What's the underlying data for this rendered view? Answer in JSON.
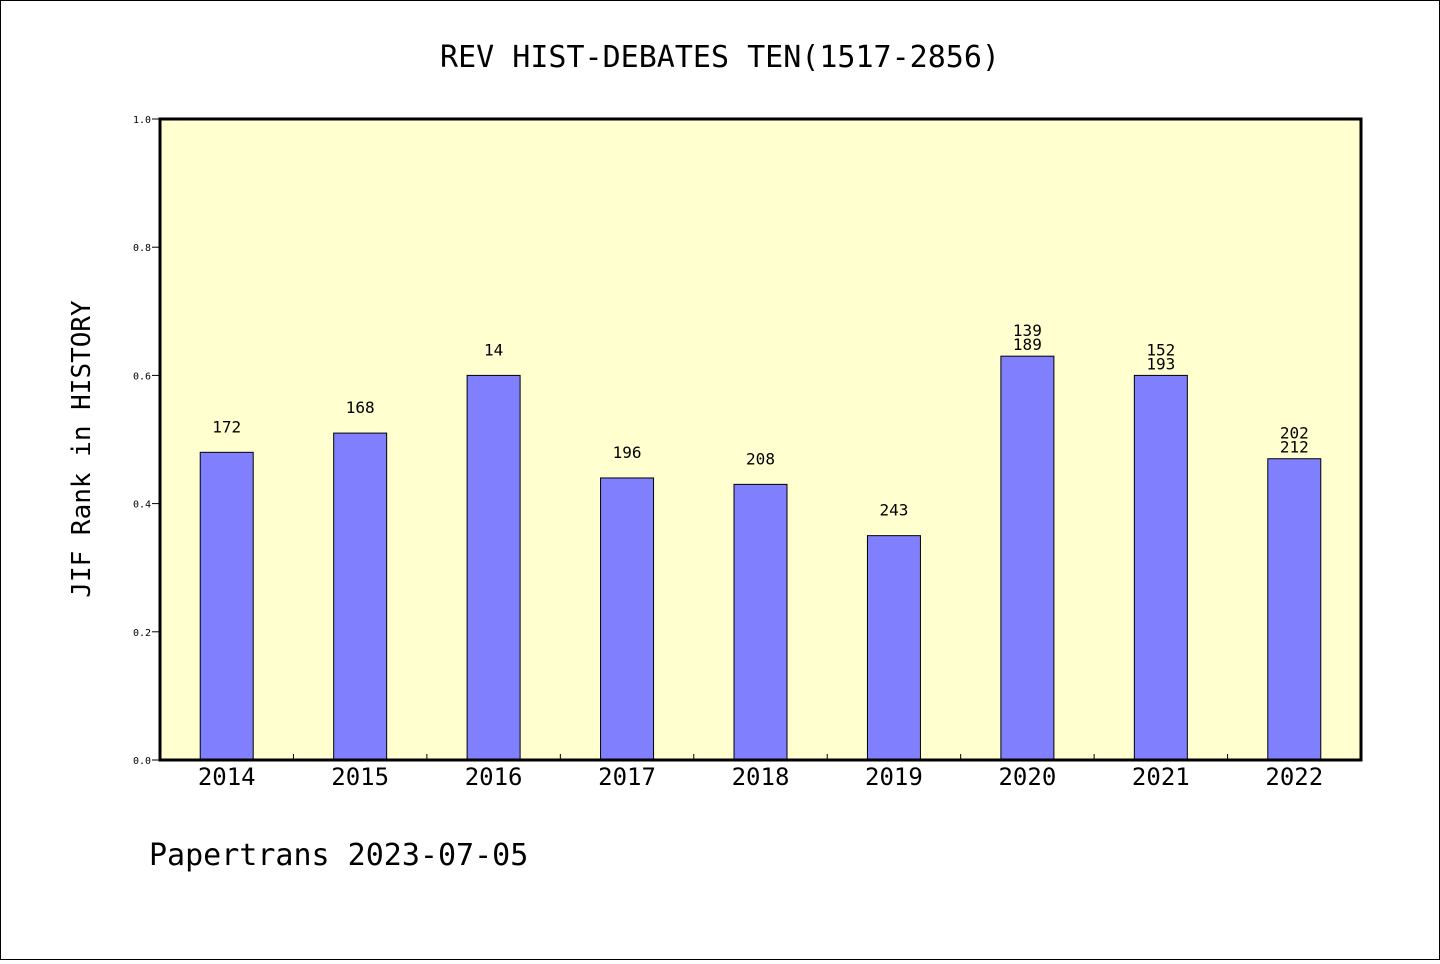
{
  "chart_data": {
    "type": "bar",
    "title": "REV HIST-DEBATES TEN(1517-2856)",
    "ylabel": "JIF Rank in HISTORY",
    "xlabel": "",
    "categories": [
      "2014",
      "2015",
      "2016",
      "2017",
      "2018",
      "2019",
      "2020",
      "2021",
      "2022"
    ],
    "values": [
      0.48,
      0.51,
      0.6,
      0.44,
      0.43,
      0.35,
      0.63,
      0.6,
      0.47
    ],
    "labels": [
      [
        "172"
      ],
      [
        "168"
      ],
      [
        "14"
      ],
      [
        "196"
      ],
      [
        "208"
      ],
      [
        "243"
      ],
      [
        "139",
        "189"
      ],
      [
        "152",
        "193"
      ],
      [
        "202",
        "212"
      ]
    ],
    "ylim": [
      0,
      1.0
    ],
    "yticks": [
      "0.0",
      "0.2",
      "0.4",
      "0.6",
      "0.8",
      "1.0"
    ],
    "grid": false,
    "colors": {
      "plot_background": "#ffffd0",
      "bar_fill": "#8080ff",
      "bar_stroke": "#000000"
    }
  },
  "footer": "Papertrans 2023-07-05"
}
